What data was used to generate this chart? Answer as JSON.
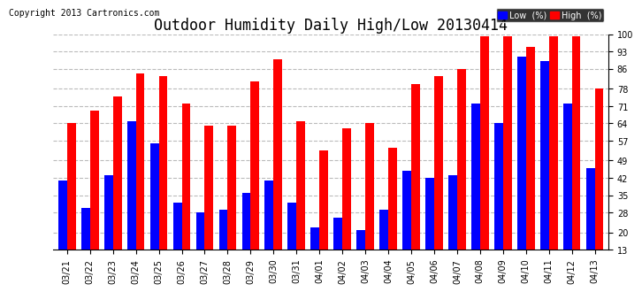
{
  "title": "Outdoor Humidity Daily High/Low 20130414",
  "copyright": "Copyright 2013 Cartronics.com",
  "categories": [
    "03/21",
    "03/22",
    "03/23",
    "03/24",
    "03/25",
    "03/26",
    "03/27",
    "03/28",
    "03/29",
    "03/30",
    "03/31",
    "04/01",
    "04/02",
    "04/03",
    "04/04",
    "04/05",
    "04/06",
    "04/07",
    "04/08",
    "04/09",
    "04/10",
    "04/11",
    "04/12",
    "04/13"
  ],
  "high_values": [
    64,
    69,
    75,
    84,
    83,
    72,
    63,
    63,
    81,
    90,
    65,
    53,
    62,
    64,
    54,
    80,
    83,
    86,
    99,
    99,
    95,
    99,
    99,
    78
  ],
  "low_values": [
    41,
    30,
    43,
    65,
    56,
    32,
    28,
    29,
    36,
    41,
    32,
    22,
    26,
    21,
    29,
    45,
    42,
    43,
    72,
    64,
    91,
    89,
    72,
    46
  ],
  "bar_width": 0.38,
  "low_color": "#0000ff",
  "high_color": "#ff0000",
  "bg_color": "#ffffff",
  "grid_color": "#bbbbbb",
  "ylim_min": 13,
  "ylim_max": 100,
  "yticks": [
    13,
    20,
    28,
    35,
    42,
    49,
    57,
    64,
    71,
    78,
    86,
    93,
    100
  ],
  "legend_low_label": "Low  (%)",
  "legend_high_label": "High  (%)",
  "title_fontsize": 12,
  "tick_fontsize": 7,
  "copyright_fontsize": 7,
  "bar_bottom": 13
}
